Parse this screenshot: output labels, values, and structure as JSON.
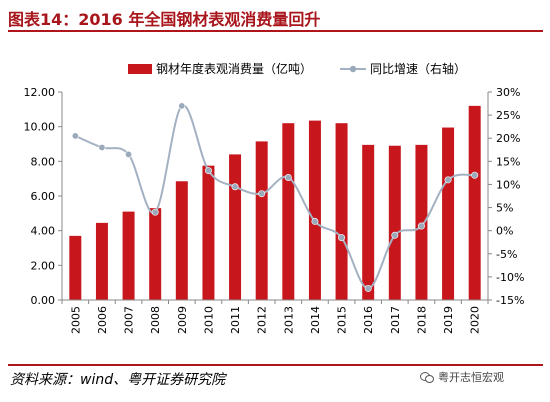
{
  "header": {
    "title": "图表14：2016 年全国钢材表观消费量回升"
  },
  "footer": {
    "source": "资料来源：wind、粤开证券研究院",
    "watermark": "粤开志恒宏观"
  },
  "colors": {
    "bar": "#c8161d",
    "line": "#a3b1c2",
    "line_marker": "#9aaabb",
    "axis": "#888888"
  },
  "chart_data": {
    "type": "bar",
    "categories": [
      "2005",
      "2006",
      "2007",
      "2008",
      "2009",
      "2010",
      "2011",
      "2012",
      "2013",
      "2014",
      "2015",
      "2016",
      "2017",
      "2018",
      "2019",
      "2020"
    ],
    "series": [
      {
        "name": "钢材年度表观消费量（亿吨）",
        "type": "bar",
        "axis": "left",
        "values": [
          3.7,
          4.45,
          5.1,
          5.3,
          6.85,
          7.75,
          8.4,
          9.15,
          10.2,
          10.35,
          10.2,
          8.95,
          8.9,
          8.95,
          9.95,
          11.2
        ]
      },
      {
        "name": "同比增速（右轴）",
        "type": "line",
        "axis": "right",
        "values": [
          20.5,
          18.0,
          16.5,
          4.0,
          27.0,
          13.0,
          9.5,
          8.0,
          11.5,
          2.0,
          -1.5,
          -12.5,
          -1.0,
          1.0,
          11.0,
          12.0
        ]
      }
    ],
    "y_left": {
      "min": 0,
      "max": 12,
      "step": 2,
      "tick_labels": [
        "0.00",
        "2.00",
        "4.00",
        "6.00",
        "8.00",
        "10.00",
        "12.00"
      ]
    },
    "y_right": {
      "min": -15,
      "max": 30,
      "step": 5,
      "tick_labels": [
        "-15%",
        "-10%",
        "-5%",
        "0%",
        "5%",
        "10%",
        "15%",
        "20%",
        "25%",
        "30%"
      ]
    },
    "legend_position": "top",
    "grid": false
  }
}
